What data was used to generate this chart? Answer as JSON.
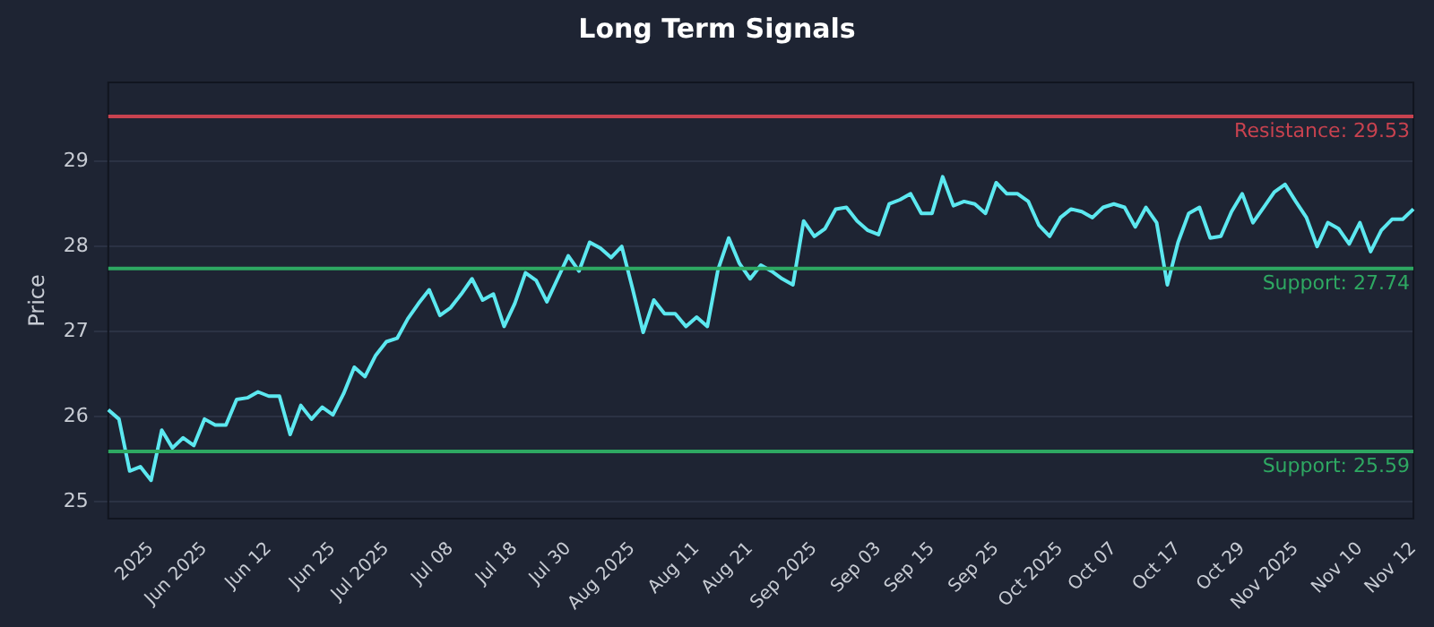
{
  "chart_data": {
    "type": "line",
    "title": "Long Term Signals",
    "ylabel": "Price",
    "categories": [
      null,
      null,
      null,
      null,
      "2025",
      null,
      null,
      null,
      null,
      "Jun 2025",
      null,
      null,
      null,
      null,
      null,
      "Jun 12",
      null,
      null,
      null,
      null,
      null,
      "Jun 25",
      null,
      null,
      null,
      null,
      "Jul 2025",
      null,
      null,
      null,
      null,
      null,
      "Jul 08",
      null,
      null,
      null,
      null,
      null,
      "Jul 18",
      null,
      null,
      null,
      null,
      "Jul 30",
      null,
      null,
      null,
      null,
      null,
      "Aug 2025",
      null,
      null,
      null,
      null,
      null,
      "Aug 11",
      null,
      null,
      null,
      null,
      "Aug 21",
      null,
      null,
      null,
      null,
      null,
      "Sep 2025",
      null,
      null,
      null,
      null,
      null,
      "Sep 03",
      null,
      null,
      null,
      null,
      "Sep 15",
      null,
      null,
      null,
      null,
      null,
      "Sep 25",
      null,
      null,
      null,
      null,
      null,
      "Oct 2025",
      null,
      null,
      null,
      null,
      "Oct 07",
      null,
      null,
      null,
      null,
      null,
      "Oct 17",
      null,
      null,
      null,
      null,
      null,
      "Oct 29",
      null,
      null,
      null,
      null,
      "Nov 2025",
      null,
      null,
      null,
      null,
      null,
      "Nov 10",
      null,
      null,
      null,
      null,
      "Nov 12"
    ],
    "series": [
      {
        "color": "#5ce8f0",
        "values": [
          26.08,
          25.97,
          25.36,
          25.41,
          25.25,
          25.84,
          25.63,
          25.75,
          25.66,
          25.97,
          25.9,
          25.9,
          26.2,
          26.22,
          26.29,
          26.24,
          26.24,
          25.79,
          26.13,
          25.97,
          26.11,
          26.02,
          26.27,
          26.58,
          26.47,
          26.72,
          26.88,
          26.92,
          27.15,
          27.33,
          27.49,
          27.19,
          27.28,
          27.44,
          27.62,
          27.37,
          27.44,
          27.06,
          27.33,
          27.69,
          27.6,
          27.35,
          27.62,
          27.89,
          27.71,
          28.05,
          27.98,
          27.87,
          28.0,
          27.51,
          26.99,
          27.37,
          27.21,
          27.21,
          27.06,
          27.17,
          27.06,
          27.73,
          28.1,
          27.8,
          27.62,
          27.78,
          27.71,
          27.62,
          27.55,
          28.3,
          28.12,
          28.21,
          28.44,
          28.46,
          28.3,
          28.19,
          28.14,
          28.5,
          28.55,
          28.62,
          28.39,
          28.39,
          28.82,
          28.48,
          28.53,
          28.5,
          28.39,
          28.75,
          28.62,
          28.62,
          28.53,
          28.25,
          28.12,
          28.34,
          28.44,
          28.41,
          28.34,
          28.46,
          28.5,
          28.46,
          28.23,
          28.46,
          28.28,
          27.55,
          28.05,
          28.39,
          28.46,
          28.1,
          28.12,
          28.41,
          28.62,
          28.28,
          28.46,
          28.64,
          28.73,
          28.53,
          28.34,
          28.0,
          28.28,
          28.21,
          28.03,
          28.28,
          27.94,
          28.19,
          28.32,
          28.32,
          28.44
        ]
      }
    ],
    "ylim": [
      24.8,
      29.93
    ],
    "yticks": [
      25,
      26,
      27,
      28,
      29
    ],
    "grid": "y",
    "legend": false,
    "marker": "none",
    "line_style": "solid",
    "ref_lines": [
      {
        "axis": "y",
        "value": 29.53,
        "label": "Resistance: 29.53",
        "color": "#c8424f"
      },
      {
        "axis": "y",
        "value": 27.74,
        "label": "Support: 27.74",
        "color": "#2ea862"
      },
      {
        "axis": "y",
        "value": 25.59,
        "label": "Support: 25.59",
        "color": "#2ea862"
      }
    ]
  }
}
